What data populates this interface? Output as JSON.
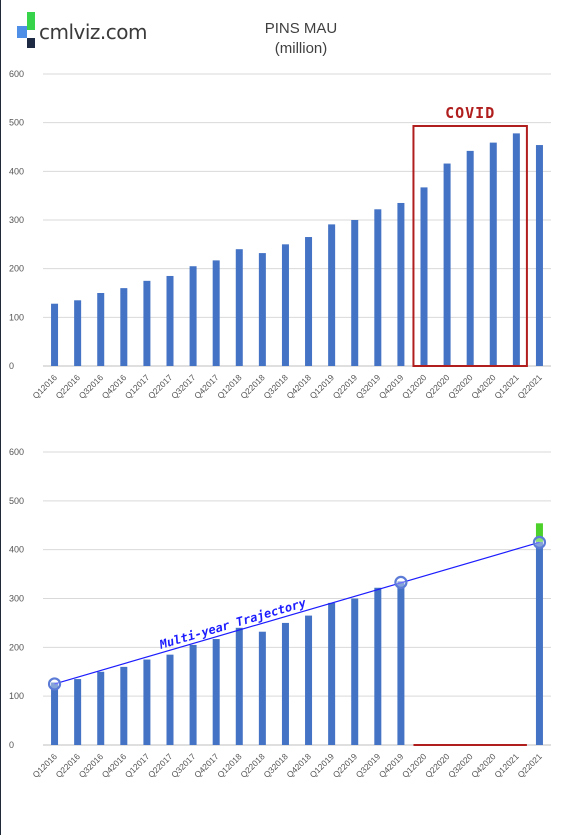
{
  "header": {
    "brand": "cmlviz.com",
    "title_line1": "PINS MAU",
    "title_line2": "(million)",
    "logo_colors": [
      "#4f8fe8",
      "#37d34b",
      "#1e2a44"
    ]
  },
  "colors": {
    "bar": "#4472c4",
    "grid": "#d9d9d9",
    "covid_box": "#b01e1e",
    "trajectory": "#1c1cff",
    "circle": "#5b7bd6",
    "highlight": "#4cd12a"
  },
  "chart_data": [
    {
      "type": "bar",
      "title": "PINS MAU (million)",
      "xlabel": "",
      "ylabel": "",
      "ylim": [
        0,
        600
      ],
      "yticks": [
        0,
        100,
        200,
        300,
        400,
        500,
        600
      ],
      "grid": true,
      "categories": [
        "Q12016",
        "Q22016",
        "Q32016",
        "Q42016",
        "Q12017",
        "Q22017",
        "Q32017",
        "Q42017",
        "Q12018",
        "Q22018",
        "Q32018",
        "Q42018",
        "Q12019",
        "Q22019",
        "Q32019",
        "Q42019",
        "Q12020",
        "Q22020",
        "Q32020",
        "Q42020",
        "Q12021",
        "Q22021"
      ],
      "values": [
        128,
        135,
        150,
        160,
        175,
        185,
        205,
        217,
        240,
        232,
        250,
        265,
        291,
        300,
        322,
        335,
        367,
        416,
        442,
        459,
        478,
        454
      ],
      "annotations": [
        {
          "text": "COVID",
          "category_range": [
            "Q12020",
            "Q12021"
          ],
          "type": "box"
        }
      ]
    },
    {
      "type": "bar",
      "xlabel": "",
      "ylabel": "",
      "ylim": [
        0,
        600
      ],
      "yticks": [
        0,
        100,
        200,
        300,
        400,
        500,
        600
      ],
      "grid": true,
      "categories": [
        "Q12016",
        "Q22016",
        "Q32016",
        "Q42016",
        "Q12017",
        "Q22017",
        "Q32017",
        "Q42017",
        "Q12018",
        "Q22018",
        "Q32018",
        "Q42018",
        "Q12019",
        "Q22019",
        "Q32019",
        "Q42019",
        "Q12020",
        "Q22020",
        "Q32020",
        "Q42020",
        "Q12021",
        "Q22021"
      ],
      "values": [
        128,
        135,
        150,
        160,
        175,
        185,
        205,
        217,
        240,
        232,
        250,
        265,
        291,
        300,
        322,
        335,
        null,
        null,
        null,
        null,
        null,
        416
      ],
      "highlight": {
        "category": "Q22021",
        "from": 416,
        "to": 454
      },
      "trajectory": {
        "label": "Multi-year Trajectory",
        "points": [
          {
            "category": "Q12016",
            "value": 125
          },
          {
            "category": "Q42019",
            "value": 333
          },
          {
            "category": "Q22021",
            "value": 415
          }
        ]
      }
    }
  ]
}
